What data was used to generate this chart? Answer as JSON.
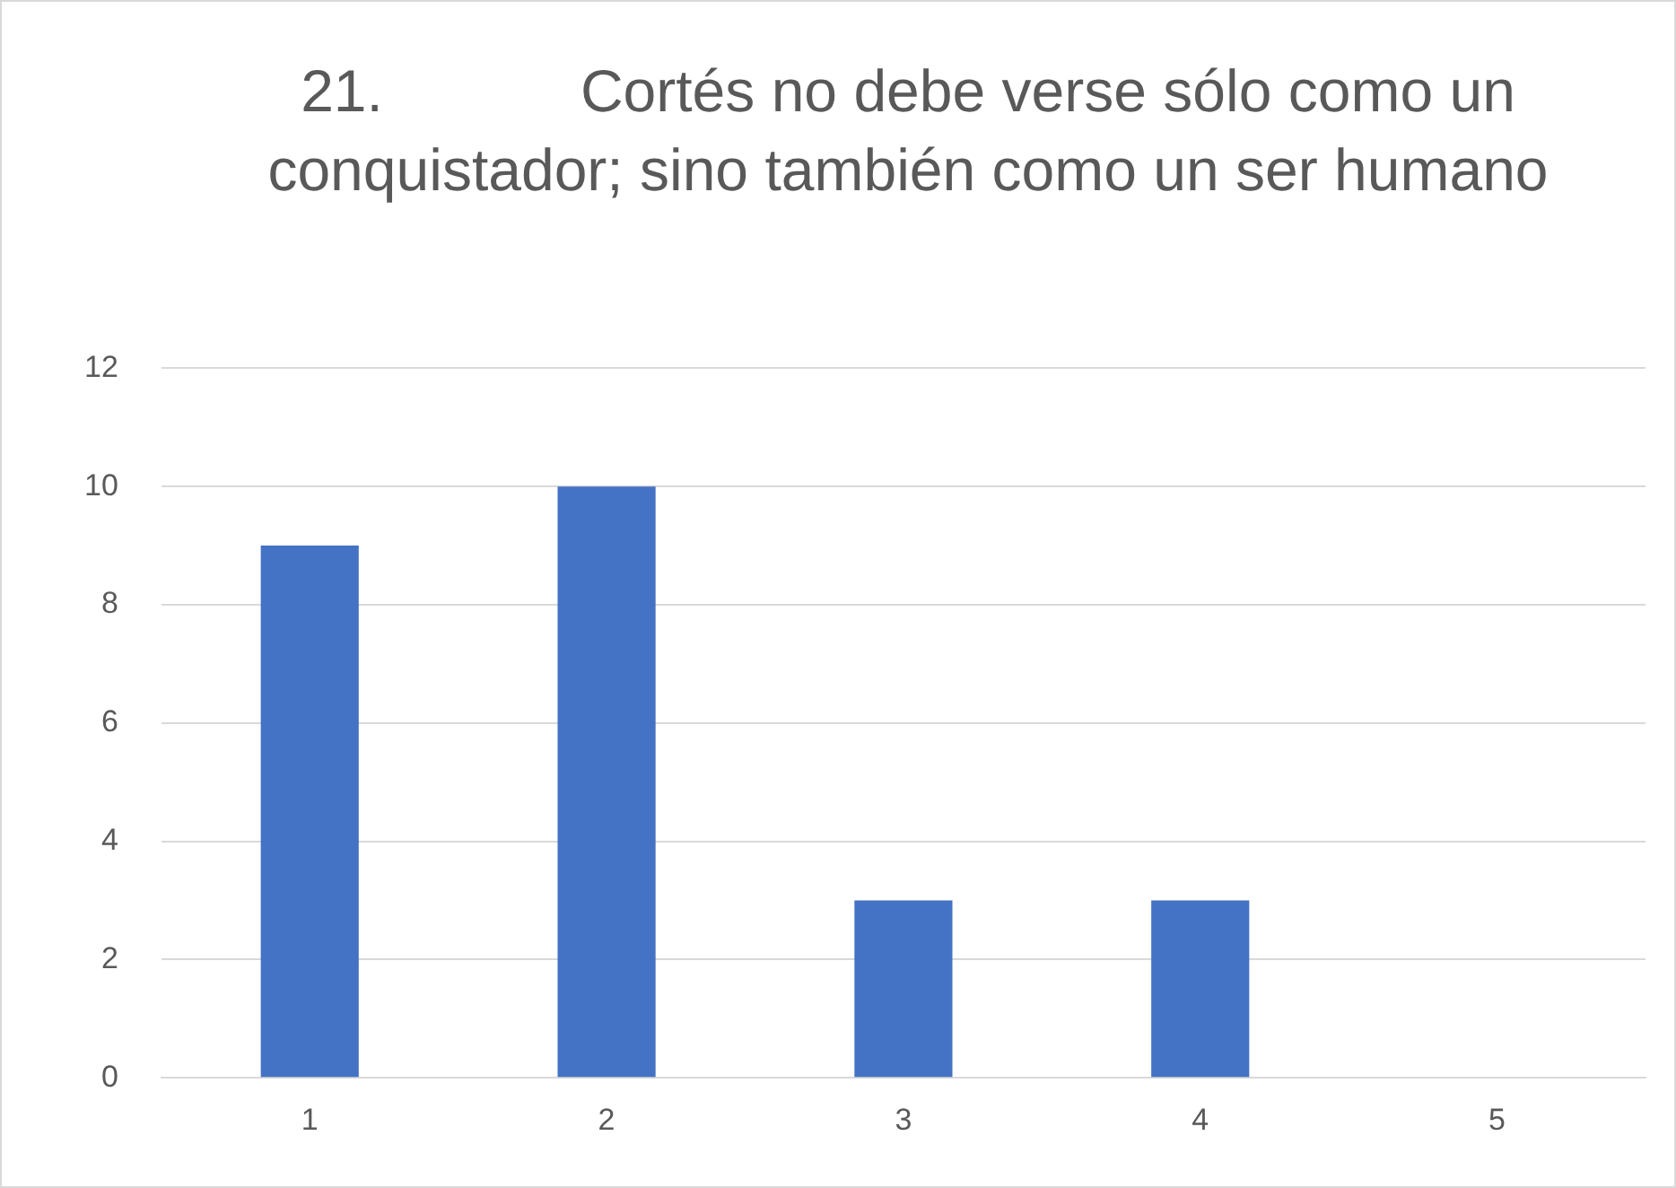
{
  "chart_data": {
    "type": "bar",
    "title": "21.            Cortés no debe verse sólo como un conquistador; sino también como un ser humano",
    "categories": [
      "1",
      "2",
      "3",
      "4",
      "5"
    ],
    "values": [
      9,
      10,
      3,
      3,
      0
    ],
    "color": "#4472c4",
    "ylim": [
      0,
      12
    ],
    "yticks": [
      0,
      2,
      4,
      6,
      8,
      10,
      12
    ],
    "grid": "y",
    "legend": false
  }
}
